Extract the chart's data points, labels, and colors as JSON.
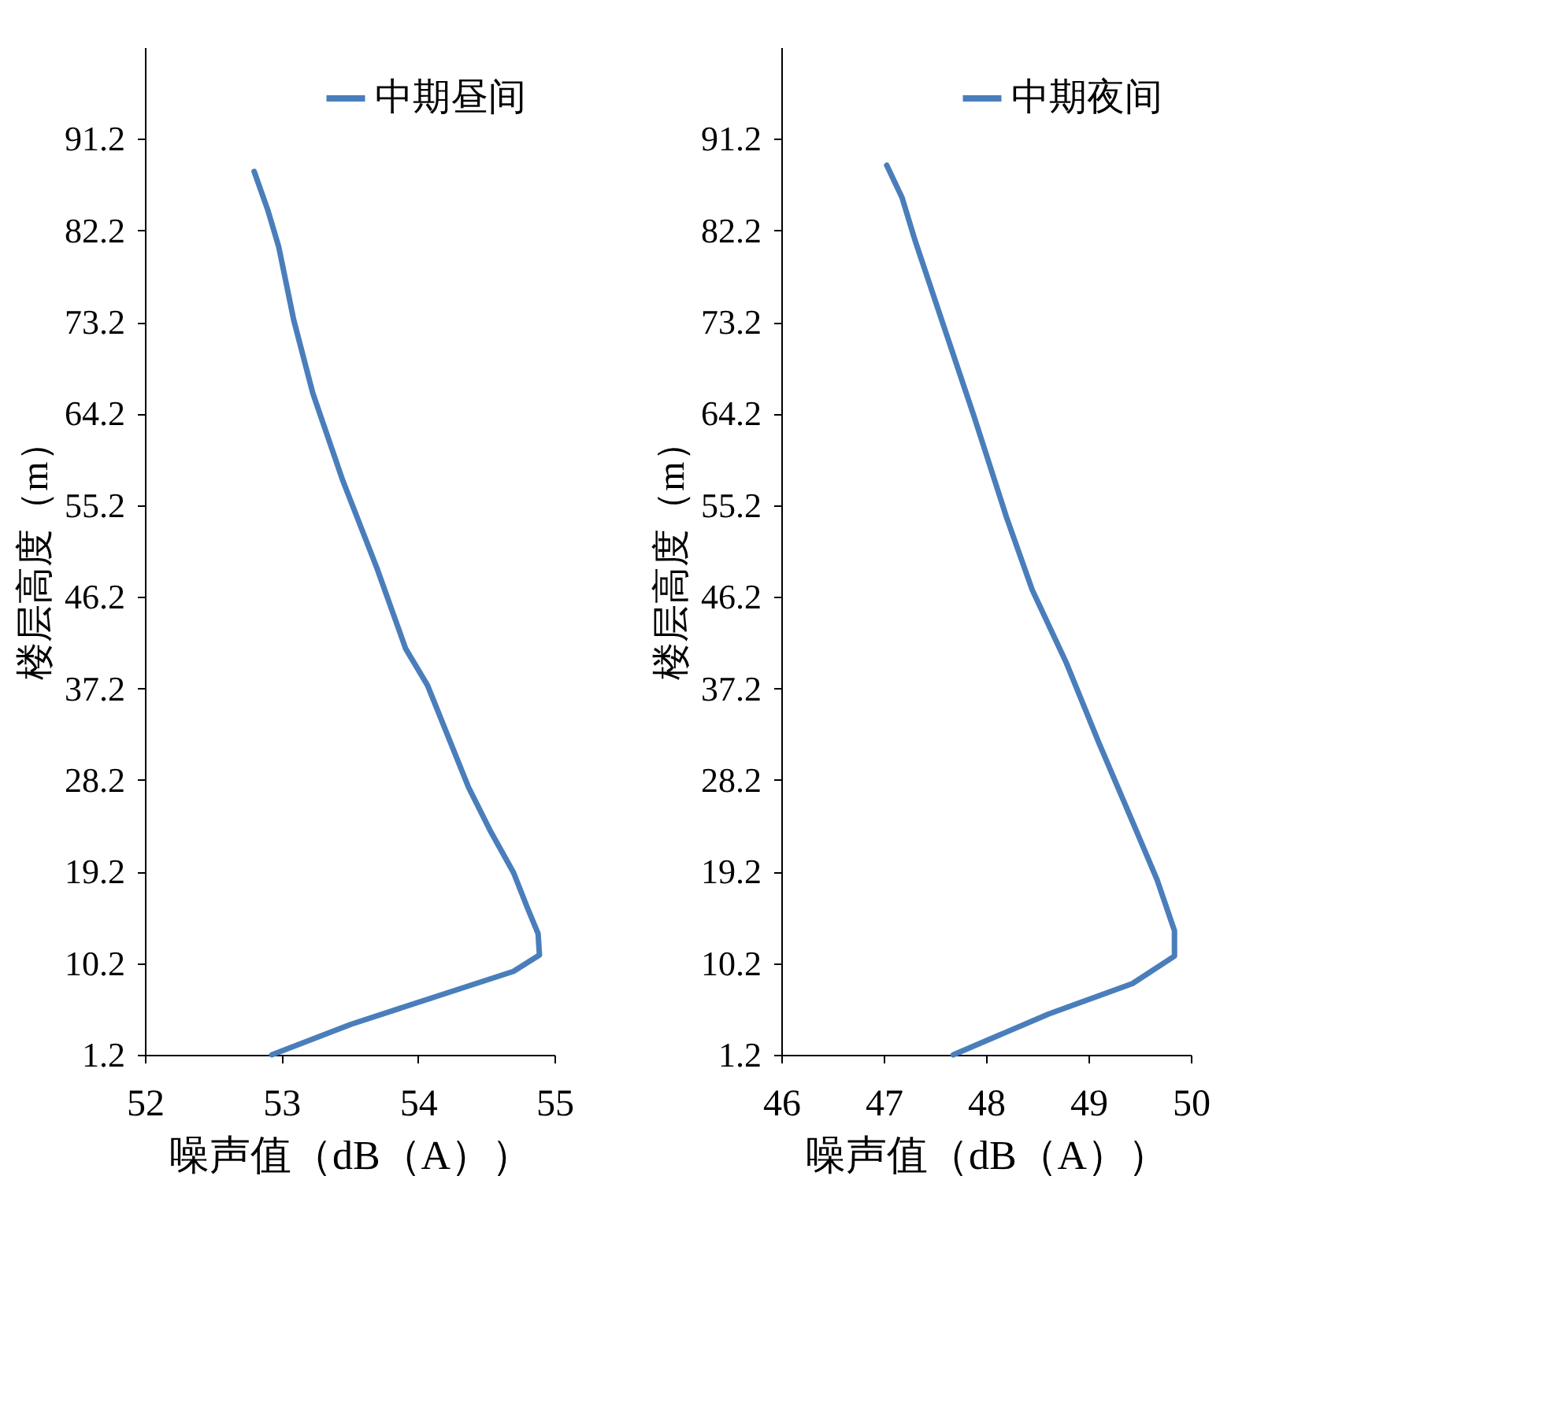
{
  "chart_data": [
    {
      "type": "line",
      "xlabel": "噪声值（dB（A））",
      "ylabel": "楼层高度（m）",
      "xlim": [
        52,
        55
      ],
      "xticks": [
        52,
        53,
        54,
        55
      ],
      "ylim": [
        1.2,
        100.2
      ],
      "yticks": [
        1.2,
        10.2,
        19.2,
        28.2,
        37.2,
        46.2,
        55.2,
        64.2,
        73.2,
        82.2,
        91.2
      ],
      "grid": false,
      "legend": "top right",
      "marker": "none",
      "line_style": "solid",
      "x": [
        52.93,
        53.51,
        54.15,
        54.7,
        54.89,
        54.88,
        54.8,
        54.7,
        54.53,
        54.37,
        54.07,
        53.91,
        53.7,
        53.45,
        53.23,
        53.09,
        52.98,
        52.9,
        52.8
      ],
      "series": [
        {
          "name": "中期昼间",
          "color": "#4a7ebb",
          "values": [
            1.2,
            4.2,
            7.0,
            9.4,
            11.0,
            13.1,
            15.7,
            19.1,
            23.2,
            27.5,
            37.5,
            41.1,
            49.0,
            57.6,
            66.2,
            73.4,
            80.6,
            84.2,
            88.0
          ]
        }
      ]
    },
    {
      "type": "line",
      "xlabel": "噪声值（dB（A））",
      "ylabel": "楼层高度（m）",
      "xlim": [
        46,
        50
      ],
      "xticks": [
        46,
        47,
        48,
        49,
        50
      ],
      "ylim": [
        1.2,
        100.2
      ],
      "yticks": [
        1.2,
        10.2,
        19.2,
        28.2,
        37.2,
        46.2,
        55.2,
        64.2,
        73.2,
        82.2,
        91.2
      ],
      "grid": false,
      "legend": "top right",
      "marker": "none",
      "line_style": "solid",
      "x": [
        47.68,
        48.61,
        49.43,
        49.84,
        49.84,
        49.67,
        49.43,
        49.1,
        48.78,
        48.45,
        48.2,
        47.88,
        47.55,
        47.31,
        47.18,
        47.03
      ],
      "series": [
        {
          "name": "中期夜间",
          "color": "#4a7ebb",
          "values": [
            1.2,
            5.2,
            8.2,
            10.9,
            13.4,
            18.4,
            24.1,
            31.9,
            39.8,
            46.9,
            54.0,
            64.0,
            73.9,
            81.1,
            85.4,
            88.6
          ]
        }
      ]
    }
  ]
}
